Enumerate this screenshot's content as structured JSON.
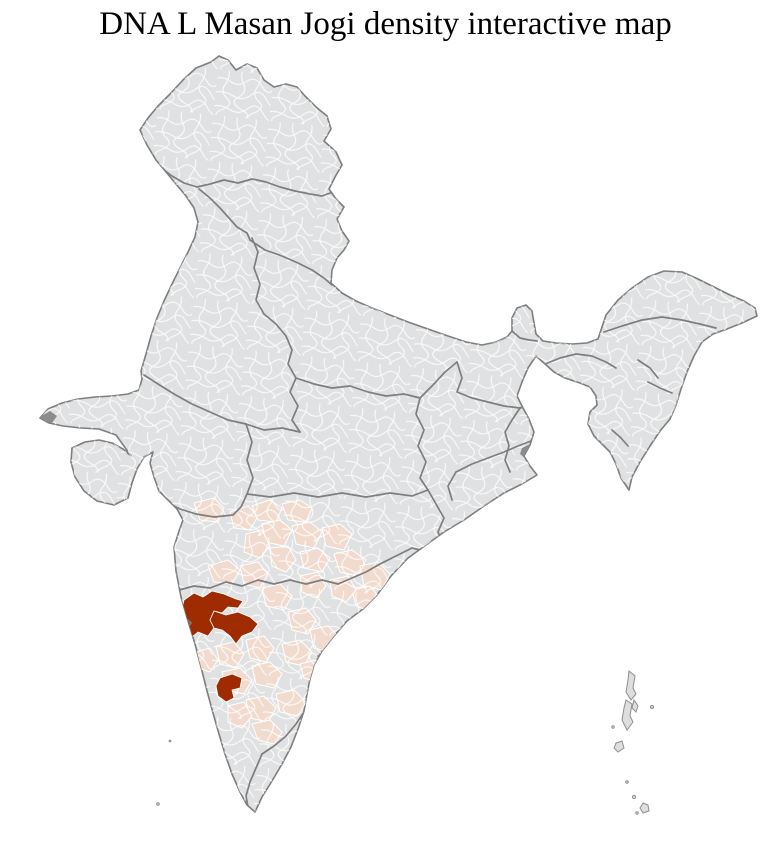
{
  "title": "DNA L Masan Jogi density interactive map",
  "map": {
    "region": "India",
    "subdivision": "districts",
    "kind": "choropleth-density",
    "colors": {
      "background": "#FFFFFF",
      "title_text": "#000000",
      "district_base": "#E0E1E2",
      "district_border": "#FFFFFF",
      "state_border": "#7E7E7E",
      "coast_outline": "#7E7E7E",
      "low_density": "#F1DBCE",
      "high_density": "#9E2C00",
      "dark_area": "#8C8C8C",
      "island_fill": "#DEDEDE",
      "island_stroke": "#8F8F8F"
    },
    "density_levels": [
      {
        "id": "base",
        "color_key": "district_base"
      },
      {
        "id": "low",
        "color_key": "low_density"
      },
      {
        "id": "high",
        "color_key": "high_density"
      }
    ],
    "high_density_district_count": 3
  }
}
